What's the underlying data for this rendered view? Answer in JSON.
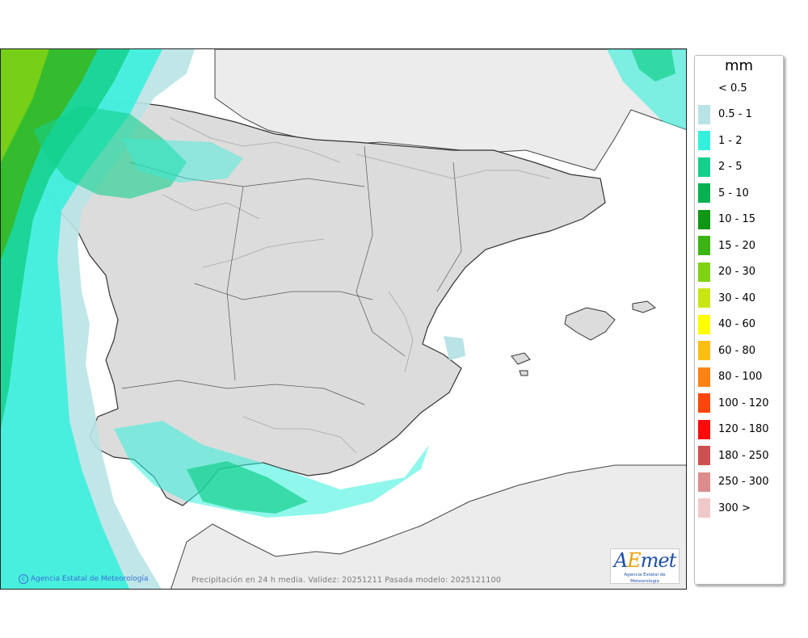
{
  "map": {
    "credit": "Agencia Estatal de Meteorología",
    "caption": "Precipitación en 24 h media. Validez: 20251211 Pasada modelo: 2025121100",
    "logo": {
      "name": "AEMET",
      "text": "AEmet",
      "subtitle": "Agencia Estatal de Meteorología"
    }
  },
  "legend": {
    "unit": "mm",
    "items": [
      {
        "label": "< 0.5",
        "color": "#ffffff"
      },
      {
        "label": "0.5 - 1",
        "color": "#b9e3e6"
      },
      {
        "label": "1 - 2",
        "color": "#34f0dc"
      },
      {
        "label": "2 - 5",
        "color": "#14d08c"
      },
      {
        "label": "5 - 10",
        "color": "#07b050"
      },
      {
        "label": "10 - 15",
        "color": "#0e9614"
      },
      {
        "label": "15 - 20",
        "color": "#3cb414"
      },
      {
        "label": "20 - 30",
        "color": "#82d214"
      },
      {
        "label": "30 - 40",
        "color": "#c8e614"
      },
      {
        "label": "40 - 60",
        "color": "#ffff00"
      },
      {
        "label": "60 - 80",
        "color": "#ffbe14"
      },
      {
        "label": "80 - 100",
        "color": "#ff8214"
      },
      {
        "label": "100 - 120",
        "color": "#ff460a"
      },
      {
        "label": "120 - 180",
        "color": "#ff0a0a"
      },
      {
        "label": "180 - 250",
        "color": "#cd5050"
      },
      {
        "label": "250 - 300",
        "color": "#dc8c8c"
      },
      {
        "label": "300 >",
        "color": "#f0c8c8"
      }
    ]
  }
}
